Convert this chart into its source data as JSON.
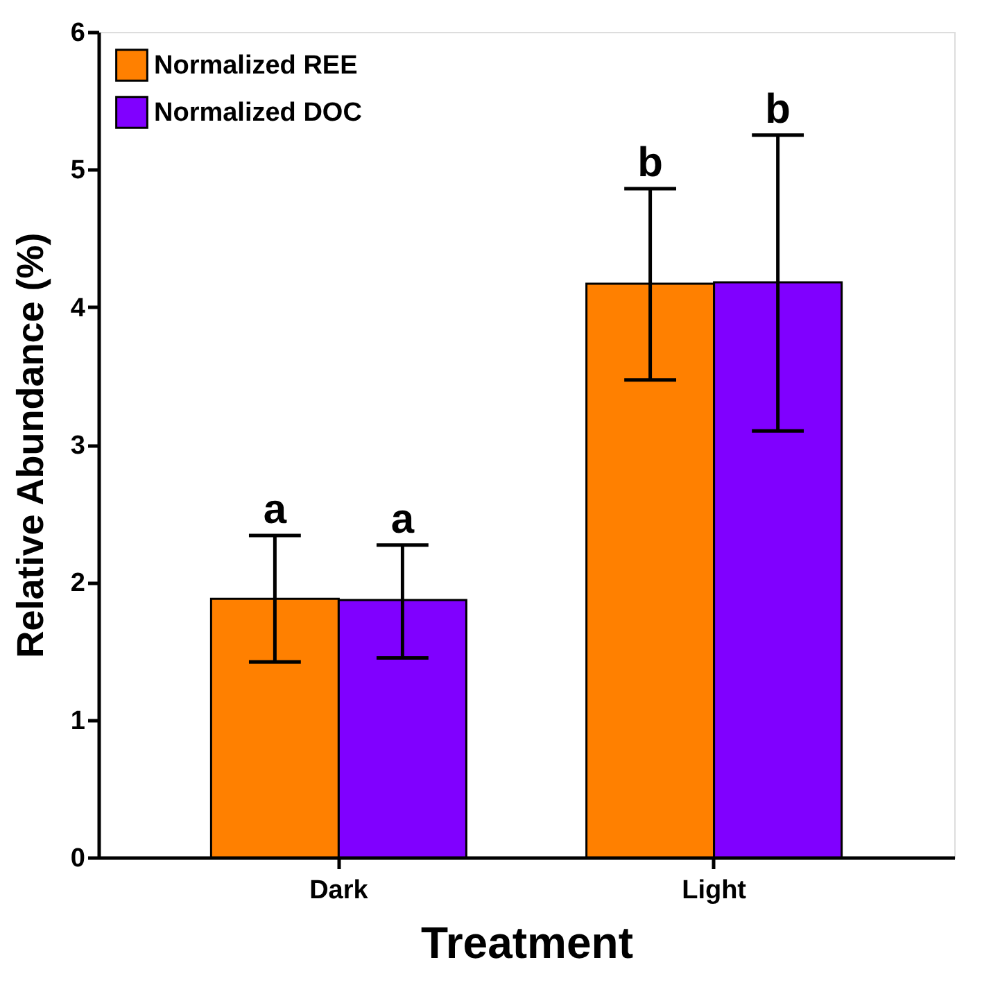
{
  "chart_data": {
    "type": "bar",
    "xlabel": "Treatment",
    "ylabel": "Relative Abundance (%)",
    "categories": [
      "Dark",
      "Light"
    ],
    "series": [
      {
        "name": "Normalized REE",
        "color": "#ff8000",
        "values": [
          1.88,
          4.17
        ],
        "errors": [
          [
            1.42,
            2.34
          ],
          [
            3.47,
            4.86
          ]
        ]
      },
      {
        "name": "Normalized DOC",
        "color": "#8000ff",
        "values": [
          1.87,
          4.18
        ],
        "errors": [
          [
            1.45,
            2.27
          ],
          [
            3.1,
            5.25
          ]
        ]
      }
    ],
    "annotations": [
      "a",
      "a",
      "b",
      "b"
    ],
    "ylim": [
      0,
      6
    ],
    "yticks": [
      0,
      1,
      2,
      3,
      4,
      5,
      6
    ],
    "grid": false,
    "legend": "top left"
  }
}
